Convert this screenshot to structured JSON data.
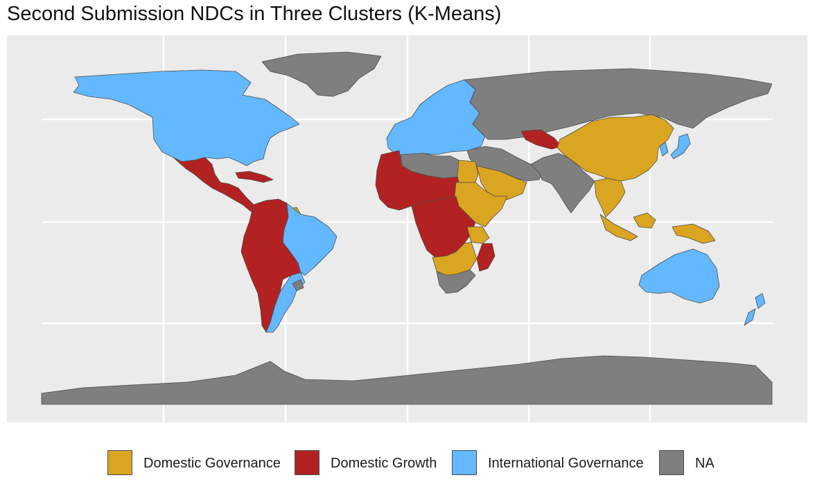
{
  "title": "Second Submission NDCs in Three Clusters (K-Means)",
  "colors": {
    "domestic_governance": "#DAA520",
    "domestic_growth": "#B22222",
    "international_governance": "#63B8FF",
    "na": "#7F7F7F",
    "panel_background": "#EBEBEB",
    "border": "#4D4D4D"
  },
  "legend": {
    "items": [
      {
        "key": "domestic_governance",
        "label": "Domestic Governance",
        "color": "#DAA520"
      },
      {
        "key": "domestic_growth",
        "label": "Domestic Growth",
        "color": "#B22222"
      },
      {
        "key": "international_governance",
        "label": "International Governance",
        "color": "#63B8FF"
      },
      {
        "key": "na",
        "label": "NA",
        "color": "#7F7F7F"
      }
    ]
  },
  "regions": [
    {
      "name": "Greenland",
      "category": "na"
    },
    {
      "name": "North America (Canada, USA)",
      "category": "international_governance"
    },
    {
      "name": "Mexico, Central America and Caribbean",
      "category": "domestic_growth"
    },
    {
      "name": "Northern South America and Andes",
      "category": "domestic_growth"
    },
    {
      "name": "Guyana",
      "category": "domestic_governance"
    },
    {
      "name": "Brazil",
      "category": "international_governance"
    },
    {
      "name": "Argentina",
      "category": "international_governance"
    },
    {
      "name": "Chile",
      "category": "domestic_growth"
    },
    {
      "name": "Uruguay",
      "category": "na"
    },
    {
      "name": "Europe",
      "category": "international_governance"
    },
    {
      "name": "Russia",
      "category": "na"
    },
    {
      "name": "Central Asia",
      "category": "domestic_growth"
    },
    {
      "name": "Middle East and Iran",
      "category": "na"
    },
    {
      "name": "Arabian Peninsula",
      "category": "domestic_governance"
    },
    {
      "name": "Egypt",
      "category": "domestic_governance"
    },
    {
      "name": "North and West Africa",
      "category": "domestic_growth"
    },
    {
      "name": "Libya and Algeria",
      "category": "na"
    },
    {
      "name": "Sudan and Horn of Africa",
      "category": "domestic_governance"
    },
    {
      "name": "Central Africa",
      "category": "domestic_growth"
    },
    {
      "name": "Tanzania",
      "category": "domestic_governance"
    },
    {
      "name": "Mozambique",
      "category": "domestic_growth"
    },
    {
      "name": "Southern Africa",
      "category": "domestic_governance"
    },
    {
      "name": "South Africa",
      "category": "na"
    },
    {
      "name": "China and Mongolia",
      "category": "domestic_governance"
    },
    {
      "name": "India and South Asia",
      "category": "na"
    },
    {
      "name": "Southeast Asia",
      "category": "domestic_governance"
    },
    {
      "name": "Japan and Korea",
      "category": "international_governance"
    },
    {
      "name": "Indonesia and Papua New Guinea",
      "category": "domestic_governance"
    },
    {
      "name": "Australia and New Zealand",
      "category": "international_governance"
    },
    {
      "name": "Antarctica",
      "category": "na"
    }
  ]
}
